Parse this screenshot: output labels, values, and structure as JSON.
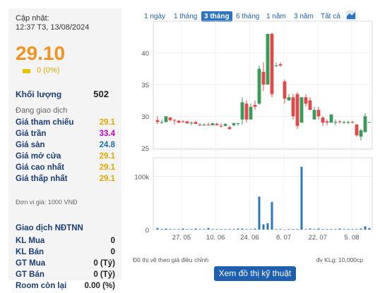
{
  "summary": {
    "updated_label": "Cập nhật:",
    "updated_time": "12:37 T3, 13/08/2024",
    "price": "29.10",
    "change": "0 (0%)",
    "volume_label": "Khối lượng",
    "volume_value": "502",
    "status": "Đang giao dịch"
  },
  "prices": [
    {
      "label": "Giá tham chiếu",
      "value": "29.1",
      "color": "#e6a800"
    },
    {
      "label": "Giá trần",
      "value": "33.4",
      "color": "#c800c8"
    },
    {
      "label": "Giá sàn",
      "value": "24.8",
      "color": "#1a6fb4"
    },
    {
      "label": "Giá mở cửa",
      "value": "29.1",
      "color": "#e6a800"
    },
    {
      "label": "Giá cao nhất",
      "value": "29.1",
      "color": "#e6a800"
    },
    {
      "label": "Giá thấp nhất",
      "value": "29.1",
      "color": "#e6a800"
    }
  ],
  "unit_note": "Đơn vị giá: 1000 VNĐ",
  "foreign": {
    "title": "Giao dịch NĐTNN",
    "rows": [
      {
        "label": "KL Mua",
        "value": "0"
      },
      {
        "label": "KL Bán",
        "value": "0"
      },
      {
        "label": "GT Mua",
        "value": "0 (Tỷ)"
      },
      {
        "label": "GT Bán",
        "value": "0 (Tỷ)"
      },
      {
        "label": "Room còn lại",
        "value": "0.00 (%)"
      }
    ]
  },
  "tabs": [
    "1 ngày",
    "1 tháng",
    "3 tháng",
    "6 tháng",
    "1 năm",
    "3 năm",
    "Tất cả"
  ],
  "active_tab": "3 tháng",
  "chart_icon": "area-chart-icon",
  "chart_data": {
    "type": "candlestick",
    "price_ticks": [
      "40",
      "35",
      "30",
      "25"
    ],
    "volume_ticks": [
      "100k",
      "0"
    ],
    "x_ticks": [
      "27. 05",
      "10. 06",
      "24. 06",
      "8. 07",
      "22. 07",
      "5. 08"
    ],
    "candles": [
      [
        29.4,
        30.0,
        28.8,
        29.1
      ],
      [
        29.1,
        29.5,
        28.8,
        29.1
      ],
      [
        29.1,
        30.0,
        29.0,
        30.0
      ],
      [
        29.8,
        29.9,
        29.2,
        29.4
      ],
      [
        29.4,
        29.6,
        28.7,
        29.3
      ],
      [
        29.3,
        29.4,
        28.9,
        29.0
      ],
      [
        29.2,
        29.4,
        29.0,
        29.1
      ],
      [
        29.2,
        29.3,
        28.8,
        28.9
      ],
      [
        28.9,
        29.2,
        28.6,
        29.0
      ],
      [
        29.1,
        29.3,
        28.8,
        28.8
      ],
      [
        28.7,
        28.9,
        28.5,
        28.6
      ],
      [
        28.6,
        28.9,
        28.5,
        28.7
      ],
      [
        28.7,
        29.0,
        28.5,
        28.6
      ],
      [
        28.6,
        29.0,
        28.5,
        28.9
      ],
      [
        28.8,
        29.0,
        28.5,
        28.6
      ],
      [
        28.5,
        28.9,
        28.2,
        28.4
      ],
      [
        28.5,
        28.9,
        28.4,
        28.8
      ],
      [
        28.3,
        28.5,
        27.9,
        28.0
      ],
      [
        28.6,
        29.0,
        28.4,
        28.9
      ],
      [
        28.8,
        29.0,
        28.5,
        28.9
      ],
      [
        29.5,
        33.0,
        28.7,
        32.2
      ],
      [
        32.0,
        32.5,
        29.0,
        29.5
      ],
      [
        29.5,
        32.0,
        29.5,
        31.5
      ],
      [
        31.8,
        32.5,
        31.0,
        31.5
      ],
      [
        32.0,
        38.0,
        31.8,
        37.5
      ],
      [
        37.0,
        38.5,
        34.0,
        35.0
      ],
      [
        35.0,
        43.0,
        35.0,
        43.0
      ],
      [
        43.0,
        43.2,
        33.0,
        33.5
      ],
      [
        38.0,
        38.5,
        37.8,
        38.0
      ],
      [
        38.2,
        38.5,
        37.8,
        38.0
      ],
      [
        35.5,
        35.8,
        32.0,
        32.8
      ],
      [
        32.5,
        33.5,
        32.5,
        33.0
      ],
      [
        33.0,
        33.5,
        29.5,
        30.0
      ],
      [
        33.5,
        33.8,
        28.0,
        28.5
      ],
      [
        29.0,
        33.0,
        29.0,
        33.0
      ],
      [
        33.0,
        33.5,
        31.5,
        32.0
      ],
      [
        32.5,
        33.0,
        31.0,
        31.0
      ],
      [
        29.5,
        31.5,
        29.5,
        31.0
      ],
      [
        31.0,
        31.5,
        29.5,
        30.0
      ],
      [
        29.8,
        30.0,
        28.5,
        29.0
      ],
      [
        29.2,
        29.5,
        28.6,
        29.0
      ],
      [
        29.0,
        30.3,
        29.0,
        30.3
      ],
      [
        29.1,
        29.5,
        28.6,
        29.1
      ],
      [
        29.2,
        29.4,
        28.9,
        29.1
      ],
      [
        29.1,
        29.3,
        28.8,
        29.1
      ],
      [
        29.1,
        29.3,
        28.8,
        29.1
      ],
      [
        29.1,
        29.3,
        28.9,
        29.0
      ],
      [
        28.7,
        28.8,
        26.8,
        27.0
      ],
      [
        26.8,
        28.0,
        26.2,
        27.8
      ],
      [
        27.5,
        30.5,
        27.5,
        30.0
      ],
      [
        29.1,
        29.1,
        29.1,
        29.1
      ]
    ],
    "volume": [
      3,
      1,
      2,
      1,
      1,
      1,
      2,
      1,
      1,
      2,
      1,
      1,
      3,
      1,
      1,
      1,
      1,
      1,
      1,
      2,
      2,
      1,
      1,
      2,
      62,
      10,
      12,
      52,
      1,
      1,
      0,
      1,
      1,
      1,
      118,
      1,
      2,
      1,
      2,
      1,
      1,
      1,
      1,
      2,
      1,
      1,
      1,
      1,
      2,
      6,
      3
    ]
  },
  "footer": {
    "note_left": "Đồ thị vẽ theo giá điều chỉnh",
    "note_right": "đv KLg: 10,000cp",
    "button": "Xem đồ thị kỹ thuật"
  }
}
